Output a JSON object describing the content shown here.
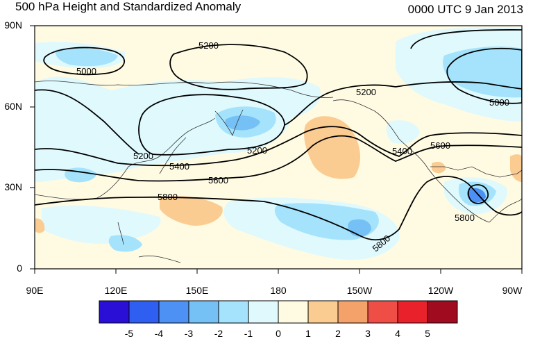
{
  "header": {
    "title": "500 hPa Height and Standardized Anomaly",
    "datetime": "0000 UTC 9 Jan 2013"
  },
  "axes": {
    "lat_labels": [
      "90N",
      "60N",
      "30N",
      "0"
    ],
    "lon_labels": [
      "90E",
      "120E",
      "150E",
      "180",
      "150W",
      "120W",
      "90W"
    ]
  },
  "contour_labels": [
    "5000",
    "5000",
    "5200",
    "5200",
    "5200",
    "5200",
    "5400",
    "5400",
    "5600",
    "5600",
    "5800",
    "5800",
    "5800"
  ],
  "colorbar": {
    "tick_labels": [
      "-5",
      "-4",
      "-3",
      "-2",
      "-1",
      "0",
      "1",
      "2",
      "3",
      "4",
      "5"
    ],
    "colors": [
      "#2a0fd6",
      "#2f5ff0",
      "#4e91f5",
      "#75c1f6",
      "#a4e3fb",
      "#dff9fd",
      "#fffbe3",
      "#fbcc92",
      "#f5a26a",
      "#ef4e46",
      "#e8212a",
      "#a00b20"
    ]
  }
}
